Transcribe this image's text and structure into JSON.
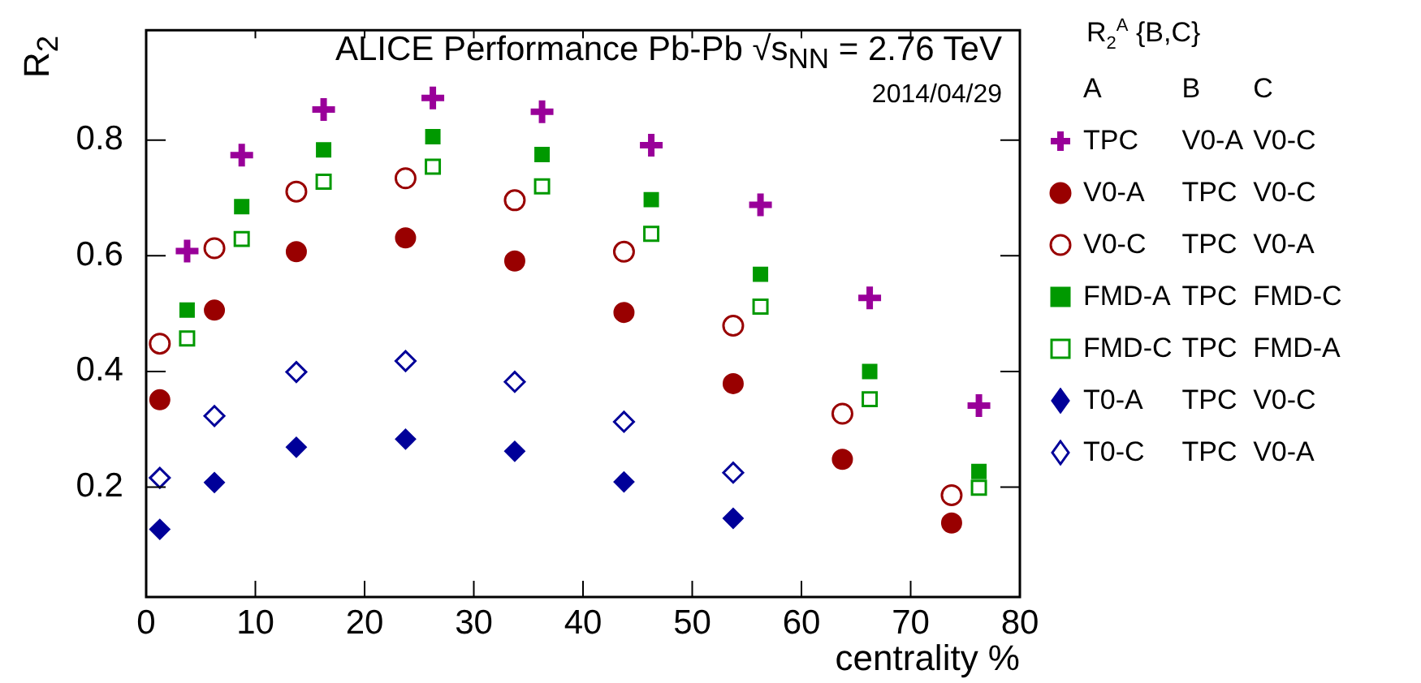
{
  "chart_data": {
    "type": "scatter",
    "title": "ALICE Performance Pb-Pb √s$_{NN}$ = 2.76 TeV",
    "xlabel": "centrality %",
    "ylabel": "R$_{2}$",
    "legend_title": "R$_{2}$$^{A}$ {B,C}",
    "annotations": [
      "2014/04/29",
      "A B C"
    ],
    "xlim": [
      0,
      80
    ],
    "xticks": [
      0,
      10,
      20,
      30,
      40,
      50,
      60,
      70,
      80
    ],
    "ylim": [
      0.01,
      0.99
    ],
    "yticks": [
      {
        "value": 0.2,
        "label": "0.2"
      },
      {
        "value": 0.4,
        "label": "0.4"
      },
      {
        "value": 0.6,
        "label": "0.6"
      },
      {
        "value": 0.8,
        "label": "0.8"
      }
    ],
    "grid": false,
    "legend": "right",
    "series": [
      {
        "name": "TPC V0-A V0-C",
        "color": "#990099",
        "marker": "cross",
        "x": [
          3.75,
          8.75,
          16.25,
          26.25,
          36.25,
          46.25,
          56.25,
          66.25,
          76.25
        ],
        "values": [
          0.608,
          0.774,
          0.853,
          0.873,
          0.849,
          0.791,
          0.688,
          0.527,
          0.341
        ]
      },
      {
        "name": "V0-A TPC V0-C",
        "color": "#990000",
        "marker": "circle",
        "x": [
          1.25,
          6.25,
          13.75,
          23.75,
          33.75,
          43.75,
          53.75,
          63.75,
          73.75
        ],
        "values": [
          0.351,
          0.506,
          0.607,
          0.631,
          0.591,
          0.502,
          0.379,
          0.248,
          0.138
        ]
      },
      {
        "name": "V0-C TPC V0-A",
        "color": "#990000",
        "marker": "circle-open",
        "x": [
          1.25,
          6.25,
          13.75,
          23.75,
          33.75,
          43.75,
          53.75,
          63.75,
          73.75
        ],
        "values": [
          0.448,
          0.613,
          0.711,
          0.734,
          0.696,
          0.607,
          0.479,
          0.327,
          0.186
        ]
      },
      {
        "name": "FMD-A TPC FMD-C",
        "color": "#009900",
        "marker": "square",
        "x": [
          3.75,
          8.75,
          16.25,
          26.25,
          36.25,
          46.25,
          56.25,
          66.25,
          76.25
        ],
        "values": [
          0.506,
          0.685,
          0.783,
          0.806,
          0.775,
          0.697,
          0.568,
          0.4,
          0.227
        ]
      },
      {
        "name": "FMD-C TPC FMD-A",
        "color": "#009900",
        "marker": "square-open",
        "x": [
          3.75,
          8.75,
          16.25,
          26.25,
          36.25,
          46.25,
          56.25,
          66.25,
          76.25
        ],
        "values": [
          0.457,
          0.629,
          0.728,
          0.754,
          0.72,
          0.638,
          0.512,
          0.352,
          0.199
        ]
      },
      {
        "name": "T0-A TPC V0-C",
        "color": "#000099",
        "marker": "diamond",
        "x": [
          1.25,
          6.25,
          13.75,
          23.75,
          33.75,
          43.75,
          53.75
        ],
        "values": [
          0.127,
          0.208,
          0.269,
          0.283,
          0.262,
          0.209,
          0.146
        ]
      },
      {
        "name": "T0-C TPC V0-A",
        "color": "#000099",
        "marker": "diamond-open",
        "x": [
          1.25,
          6.25,
          13.75,
          23.75,
          33.75,
          43.75,
          53.75
        ],
        "values": [
          0.216,
          0.323,
          0.399,
          0.418,
          0.382,
          0.313,
          0.225
        ]
      }
    ]
  }
}
